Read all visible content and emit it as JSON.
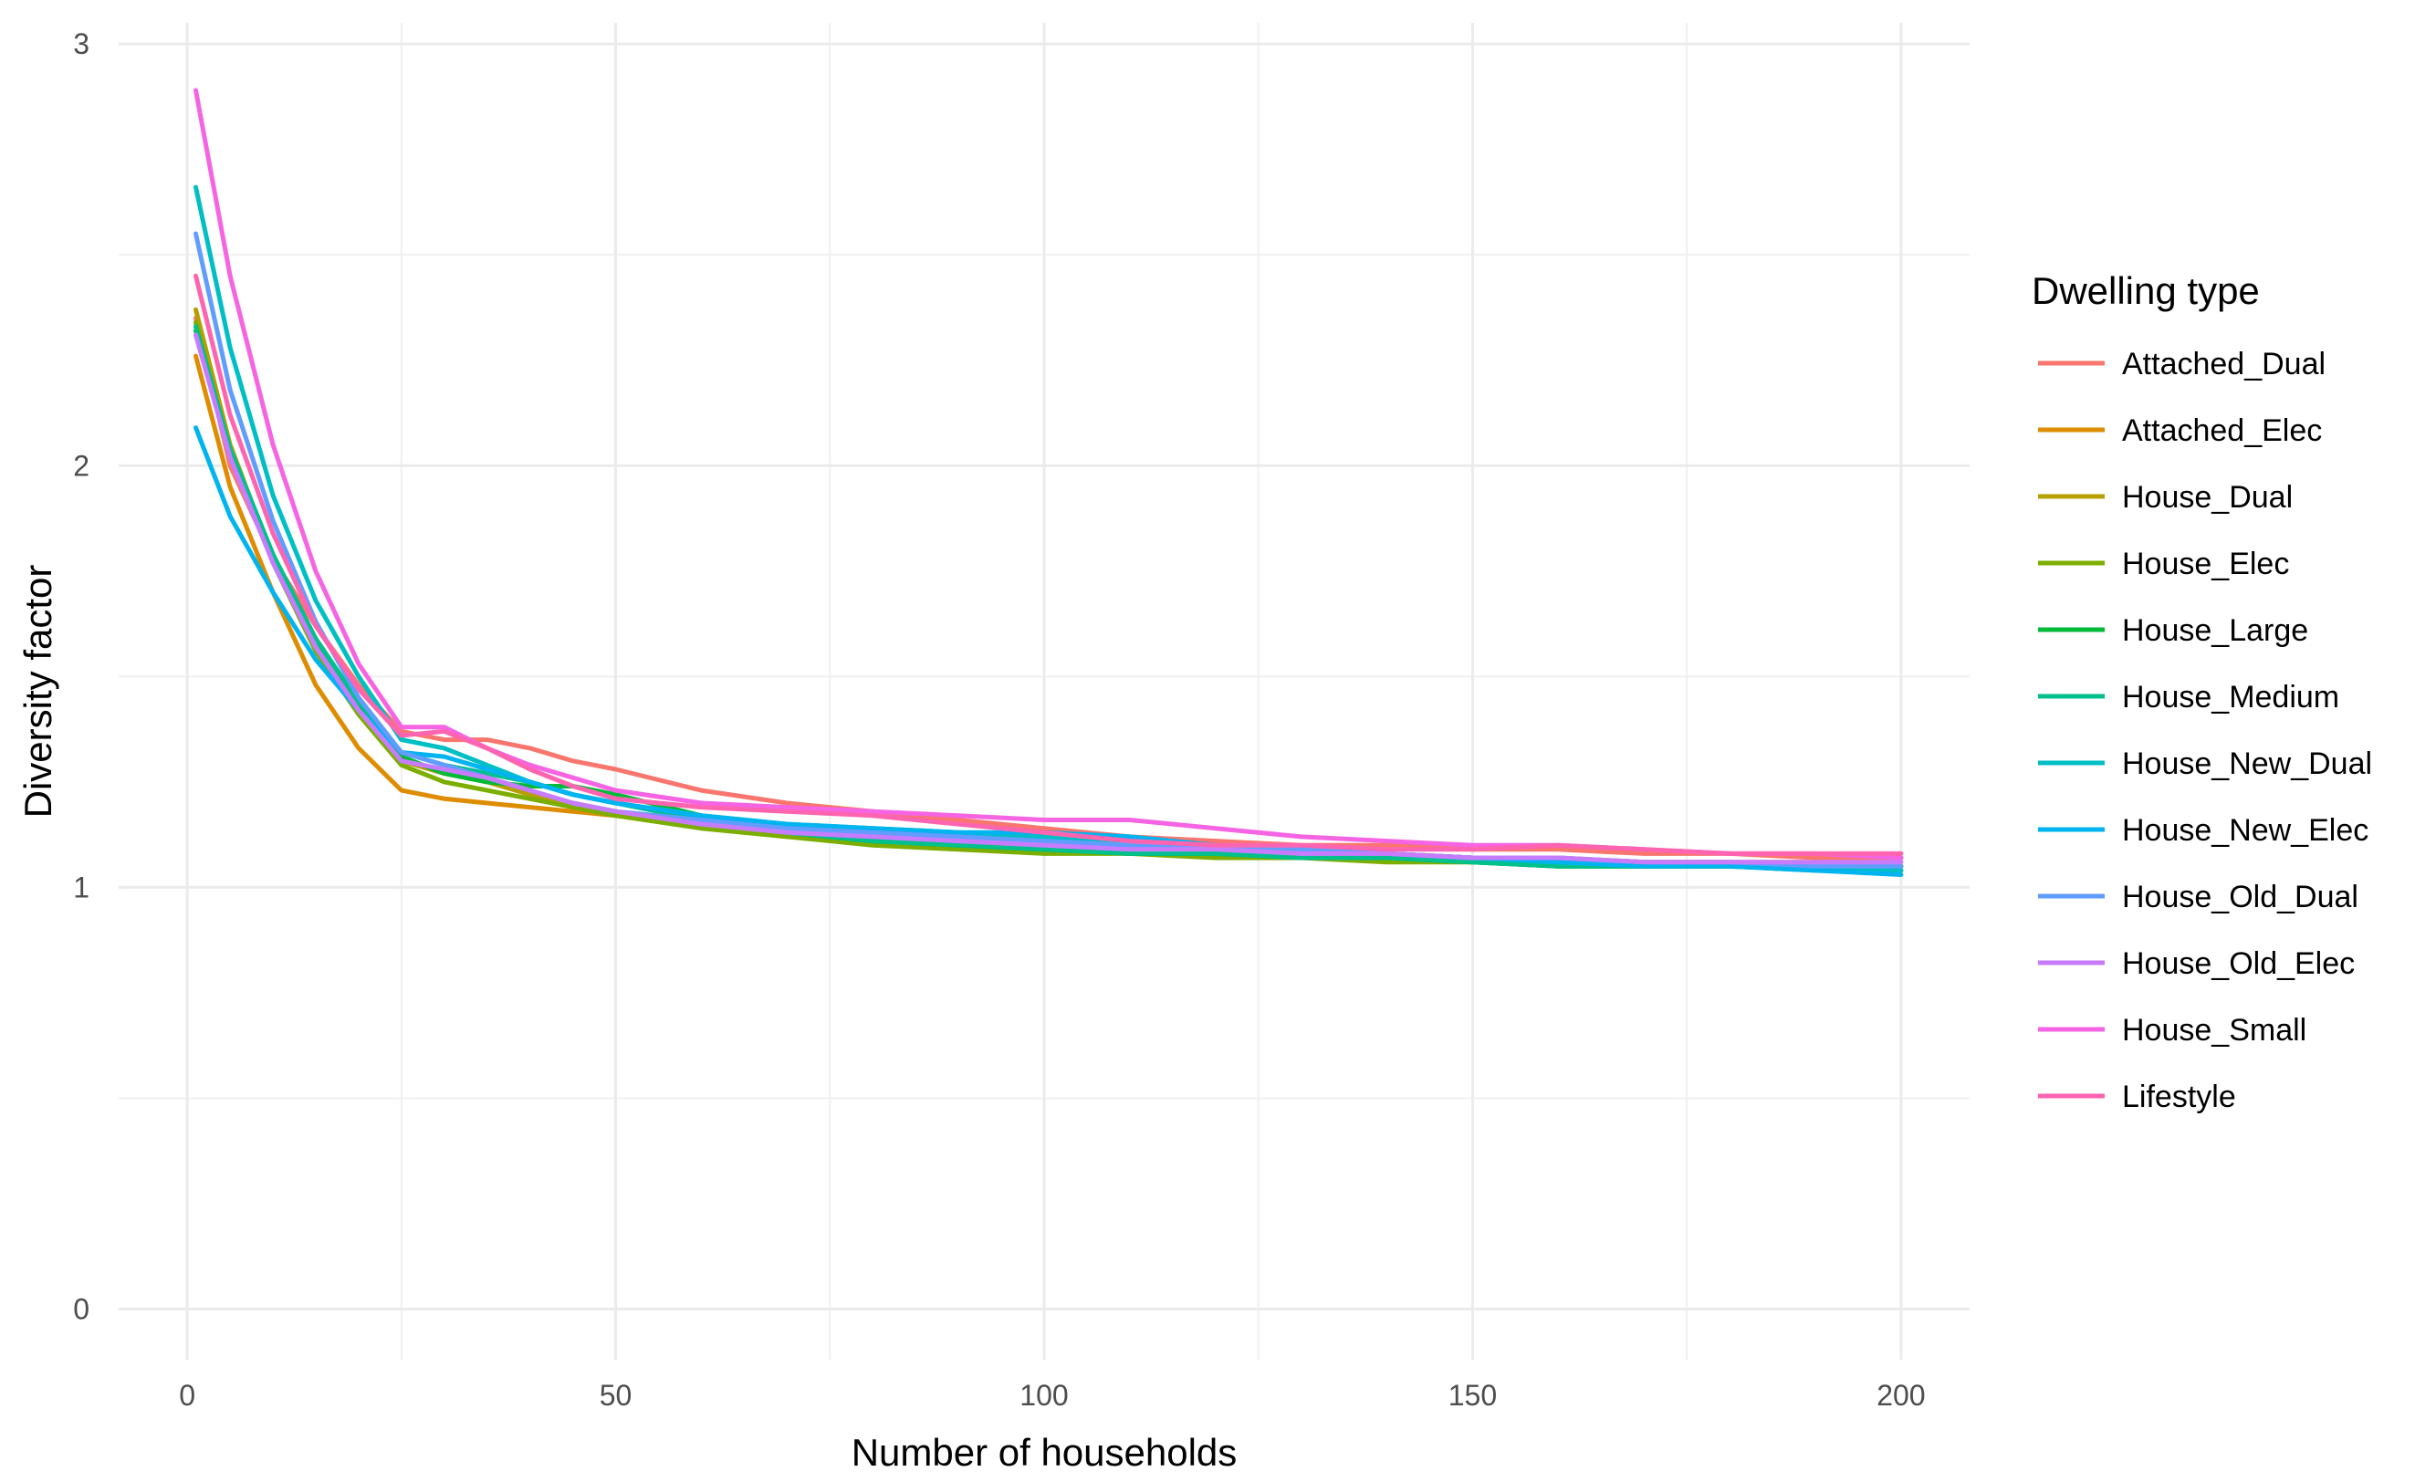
{
  "chart_data": {
    "type": "line",
    "title": "",
    "xlabel": "Number of households",
    "ylabel": "Diversity factor",
    "xlim": [
      -8,
      208
    ],
    "ylim": [
      -0.12,
      3.05
    ],
    "x_ticks": [
      0,
      50,
      100,
      150,
      200
    ],
    "y_ticks": [
      0,
      1,
      2,
      3
    ],
    "grid": true,
    "legend_title": "Dwelling type",
    "legend_position": "right",
    "series": [
      {
        "name": "Attached_Dual",
        "color": "#F8766D",
        "x": [
          1,
          5,
          10,
          15,
          20,
          25,
          30,
          35,
          40,
          45,
          50,
          60,
          70,
          80,
          90,
          100,
          110,
          120,
          130,
          140,
          150,
          160,
          170,
          180,
          190,
          200
        ],
        "y": [
          2.35,
          2.0,
          1.78,
          1.62,
          1.48,
          1.37,
          1.35,
          1.35,
          1.33,
          1.3,
          1.28,
          1.23,
          1.2,
          1.18,
          1.16,
          1.14,
          1.12,
          1.11,
          1.1,
          1.1,
          1.09,
          1.09,
          1.08,
          1.08,
          1.07,
          1.07
        ]
      },
      {
        "name": "Attached_Elec",
        "color": "#DE8C00",
        "x": [
          1,
          5,
          10,
          15,
          20,
          25,
          30,
          35,
          40,
          45,
          50,
          60,
          70,
          80,
          90,
          100,
          110,
          120,
          130,
          140,
          150,
          160,
          170,
          180,
          190,
          200
        ],
        "y": [
          2.26,
          1.95,
          1.7,
          1.48,
          1.33,
          1.23,
          1.21,
          1.2,
          1.19,
          1.18,
          1.17,
          1.15,
          1.13,
          1.12,
          1.11,
          1.1,
          1.09,
          1.09,
          1.08,
          1.08,
          1.07,
          1.07,
          1.06,
          1.06,
          1.06,
          1.05
        ]
      },
      {
        "name": "House_Dual",
        "color": "#B79F00",
        "x": [
          1,
          5,
          10,
          15,
          20,
          25,
          30,
          35,
          40,
          45,
          50,
          60,
          70,
          80,
          90,
          100,
          110,
          120,
          130,
          140,
          150,
          160,
          170,
          180,
          190,
          200
        ],
        "y": [
          2.37,
          2.05,
          1.78,
          1.57,
          1.42,
          1.3,
          1.27,
          1.25,
          1.22,
          1.2,
          1.18,
          1.15,
          1.12,
          1.11,
          1.1,
          1.09,
          1.08,
          1.08,
          1.07,
          1.07,
          1.06,
          1.06,
          1.05,
          1.05,
          1.05,
          1.05
        ]
      },
      {
        "name": "House_Elec",
        "color": "#7CAE00",
        "x": [
          1,
          5,
          10,
          15,
          20,
          25,
          30,
          35,
          40,
          45,
          50,
          60,
          70,
          80,
          90,
          100,
          110,
          120,
          130,
          140,
          150,
          160,
          170,
          180,
          190,
          200
        ],
        "y": [
          2.34,
          2.03,
          1.77,
          1.56,
          1.41,
          1.29,
          1.25,
          1.23,
          1.21,
          1.19,
          1.17,
          1.14,
          1.12,
          1.1,
          1.09,
          1.08,
          1.08,
          1.07,
          1.07,
          1.06,
          1.06,
          1.05,
          1.05,
          1.05,
          1.04,
          1.04
        ]
      },
      {
        "name": "House_Large",
        "color": "#00BA38",
        "x": [
          1,
          5,
          10,
          15,
          20,
          25,
          30,
          35,
          40,
          45,
          50,
          60,
          70,
          80,
          90,
          100,
          110,
          120,
          130,
          140,
          150,
          160,
          170,
          180,
          190,
          200
        ],
        "y": [
          2.32,
          2.04,
          1.79,
          1.58,
          1.43,
          1.31,
          1.27,
          1.25,
          1.24,
          1.24,
          1.22,
          1.17,
          1.13,
          1.11,
          1.1,
          1.09,
          1.08,
          1.08,
          1.07,
          1.07,
          1.06,
          1.05,
          1.05,
          1.05,
          1.05,
          1.05
        ]
      },
      {
        "name": "House_Medium",
        "color": "#00C08B",
        "x": [
          1,
          5,
          10,
          15,
          20,
          25,
          30,
          35,
          40,
          45,
          50,
          60,
          70,
          80,
          90,
          100,
          110,
          120,
          130,
          140,
          150,
          160,
          170,
          180,
          190,
          200
        ],
        "y": [
          2.33,
          2.04,
          1.79,
          1.59,
          1.44,
          1.32,
          1.29,
          1.27,
          1.25,
          1.22,
          1.2,
          1.16,
          1.13,
          1.11,
          1.1,
          1.09,
          1.08,
          1.08,
          1.07,
          1.07,
          1.06,
          1.05,
          1.05,
          1.05,
          1.05,
          1.04
        ]
      },
      {
        "name": "House_New_Dual",
        "color": "#00BFC4",
        "x": [
          1,
          5,
          10,
          15,
          20,
          25,
          30,
          35,
          40,
          45,
          50,
          60,
          70,
          80,
          90,
          100,
          110,
          120,
          130,
          140,
          150,
          160,
          170,
          180,
          190,
          200
        ],
        "y": [
          2.66,
          2.28,
          1.93,
          1.68,
          1.5,
          1.35,
          1.33,
          1.29,
          1.25,
          1.22,
          1.2,
          1.17,
          1.15,
          1.14,
          1.13,
          1.12,
          1.11,
          1.1,
          1.09,
          1.08,
          1.07,
          1.06,
          1.06,
          1.05,
          1.05,
          1.04
        ]
      },
      {
        "name": "House_New_Elec",
        "color": "#00B4EF",
        "x": [
          1,
          5,
          10,
          15,
          20,
          25,
          30,
          35,
          40,
          45,
          50,
          60,
          70,
          80,
          90,
          100,
          110,
          120,
          130,
          140,
          150,
          160,
          170,
          180,
          190,
          200
        ],
        "y": [
          2.09,
          1.88,
          1.7,
          1.54,
          1.42,
          1.32,
          1.31,
          1.28,
          1.25,
          1.22,
          1.2,
          1.17,
          1.15,
          1.14,
          1.13,
          1.13,
          1.12,
          1.1,
          1.09,
          1.08,
          1.07,
          1.06,
          1.05,
          1.05,
          1.04,
          1.03
        ]
      },
      {
        "name": "House_Old_Dual",
        "color": "#619CFF",
        "x": [
          1,
          5,
          10,
          15,
          20,
          25,
          30,
          35,
          40,
          45,
          50,
          60,
          70,
          80,
          90,
          100,
          110,
          120,
          130,
          140,
          150,
          160,
          170,
          180,
          190,
          200
        ],
        "y": [
          2.55,
          2.18,
          1.87,
          1.63,
          1.45,
          1.32,
          1.29,
          1.26,
          1.23,
          1.2,
          1.18,
          1.16,
          1.14,
          1.13,
          1.12,
          1.11,
          1.1,
          1.1,
          1.09,
          1.08,
          1.07,
          1.07,
          1.06,
          1.06,
          1.05,
          1.05
        ]
      },
      {
        "name": "House_Old_Elec",
        "color": "#C77CFF",
        "x": [
          1,
          5,
          10,
          15,
          20,
          25,
          30,
          35,
          40,
          45,
          50,
          60,
          70,
          80,
          90,
          100,
          110,
          120,
          130,
          140,
          150,
          160,
          170,
          180,
          190,
          200
        ],
        "y": [
          2.31,
          2.02,
          1.77,
          1.57,
          1.42,
          1.3,
          1.28,
          1.26,
          1.23,
          1.2,
          1.18,
          1.15,
          1.13,
          1.12,
          1.11,
          1.1,
          1.09,
          1.09,
          1.08,
          1.08,
          1.07,
          1.07,
          1.06,
          1.06,
          1.06,
          1.06
        ]
      },
      {
        "name": "House_Small",
        "color": "#F564E3",
        "x": [
          1,
          5,
          10,
          15,
          20,
          25,
          30,
          35,
          40,
          45,
          50,
          60,
          70,
          80,
          90,
          100,
          110,
          120,
          130,
          140,
          150,
          160,
          170,
          180,
          190,
          200
        ],
        "y": [
          2.89,
          2.45,
          2.05,
          1.75,
          1.53,
          1.38,
          1.38,
          1.33,
          1.29,
          1.26,
          1.23,
          1.2,
          1.19,
          1.18,
          1.17,
          1.16,
          1.16,
          1.14,
          1.12,
          1.11,
          1.1,
          1.1,
          1.09,
          1.08,
          1.08,
          1.07
        ]
      },
      {
        "name": "Lifestyle",
        "color": "#FF64B0",
        "x": [
          1,
          5,
          10,
          15,
          20,
          25,
          30,
          35,
          40,
          45,
          50,
          60,
          70,
          80,
          90,
          100,
          110,
          120,
          130,
          140,
          150,
          160,
          170,
          180,
          190,
          200
        ],
        "y": [
          2.45,
          2.12,
          1.84,
          1.62,
          1.47,
          1.36,
          1.37,
          1.33,
          1.28,
          1.24,
          1.21,
          1.19,
          1.18,
          1.17,
          1.15,
          1.13,
          1.11,
          1.1,
          1.1,
          1.09,
          1.09,
          1.1,
          1.09,
          1.08,
          1.08,
          1.08
        ]
      }
    ]
  }
}
